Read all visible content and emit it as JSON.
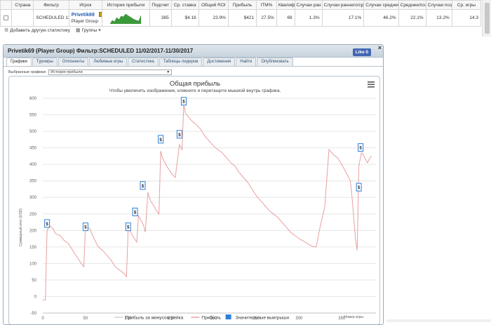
{
  "table": {
    "headers": [
      "",
      "Страна",
      "Фильтр",
      "Игрок",
      "История прибыли",
      "Подсчет",
      "Ср. ставка",
      "Общий ROI",
      "Прибыль",
      "ITM%",
      "Квалиф",
      "Случаи ран",
      "Случаи раннего/сре",
      "Случаи среднего",
      "Среднее/позд",
      "Случаи поздн",
      "Ср. игры"
    ],
    "row": {
      "filter": "SCHEDULED 11/02/2017-11/30/2017",
      "player_name": "Privetik69",
      "player_group": "Player Group",
      "count": "385",
      "avg_stake": "$4.16",
      "roi": "23.9%",
      "profit": "$421",
      "itm": "27.5%",
      "qualif": "69",
      "early": "1.3%",
      "early_mid": "17.1%",
      "mid": "46.2%",
      "mid_late": "22.1%",
      "late": "13.2%",
      "avg_games": "14.3"
    },
    "sparkline": [
      0,
      5,
      3,
      9,
      6,
      11,
      10,
      14,
      12,
      10,
      8,
      6,
      5,
      4,
      12
    ]
  },
  "toolbar": {
    "add_stat": "Добавить другую статистику",
    "groups": "Группы"
  },
  "dialog": {
    "title": "Privetik69 (Player Group) Фильтр:SCHEDULED 11/02/2017-11/30/2017",
    "like_label": "Like 0",
    "close": "×",
    "tabs": [
      "Графики",
      "Турниры",
      "Оппоненты",
      "Любимые игры",
      "Статистика",
      "Таблицы лидеров",
      "Достижения",
      "Найти",
      "Опубликовать"
    ],
    "active_tab": 0,
    "selected_label": "Выбранные графики:",
    "selected_value": "История прибыли"
  },
  "chart_data": {
    "type": "line",
    "title": "Общая прибыль",
    "subtitle": "Чтобы увеличить изображение, кликните и перетащите мышкой внутрь графика.",
    "ylabel": "Суммарный итог (USD)",
    "xlabel": "Номер игры",
    "xlim": [
      0,
      390
    ],
    "ylim": [
      -50,
      600
    ],
    "x_ticks": [
      0,
      50,
      100,
      150,
      200,
      250,
      300,
      350
    ],
    "y_ticks": [
      -50,
      0,
      50,
      100,
      150,
      200,
      250,
      300,
      350,
      400,
      450,
      500,
      550,
      600
    ],
    "grid": true,
    "series": [
      {
        "name": "Прибыль",
        "color": "#e8a0a0",
        "x": [
          0,
          3,
          5,
          8,
          12,
          15,
          20,
          25,
          30,
          35,
          40,
          45,
          48,
          50,
          55,
          60,
          65,
          70,
          75,
          80,
          85,
          90,
          95,
          98,
          100,
          103,
          106,
          110,
          112,
          115,
          118,
          120,
          123,
          126,
          130,
          133,
          136,
          138,
          140,
          145,
          150,
          155,
          160,
          163,
          165,
          167,
          170,
          175,
          180,
          185,
          190,
          195,
          200,
          205,
          210,
          215,
          220,
          225,
          230,
          235,
          240,
          245,
          250,
          255,
          260,
          265,
          270,
          275,
          280,
          285,
          290,
          295,
          300,
          305,
          310,
          315,
          320,
          325,
          330,
          335,
          340,
          345,
          350,
          355,
          360,
          362,
          364,
          366,
          368,
          370,
          373,
          375,
          378,
          380,
          383,
          385
        ],
        "y": [
          -10,
          -10,
          200,
          215,
          205,
          190,
          185,
          170,
          160,
          140,
          120,
          100,
          90,
          215,
          205,
          175,
          150,
          140,
          125,
          110,
          90,
          80,
          70,
          60,
          210,
          195,
          180,
          165,
          245,
          230,
          215,
          195,
          315,
          290,
          275,
          260,
          250,
          440,
          420,
          395,
          375,
          360,
          460,
          445,
          580,
          555,
          545,
          530,
          520,
          505,
          485,
          470,
          455,
          445,
          435,
          420,
          405,
          395,
          375,
          360,
          345,
          325,
          305,
          290,
          275,
          260,
          250,
          240,
          225,
          210,
          195,
          185,
          175,
          168,
          160,
          152,
          150,
          215,
          270,
          445,
          430,
          420,
          400,
          375,
          350,
          300,
          240,
          175,
          140,
          395,
          435,
          430,
          415,
          405,
          420,
          425
        ]
      },
      {
        "name": "Прибыль за минусом рейка",
        "color": "#cfcfcf",
        "x": [],
        "y": []
      }
    ],
    "markers": [
      {
        "label": "$",
        "x": 5,
        "y": 220
      },
      {
        "label": "$",
        "x": 50,
        "y": 210
      },
      {
        "label": "$",
        "x": 100,
        "y": 210
      },
      {
        "label": "$",
        "x": 108,
        "y": 255
      },
      {
        "label": "$",
        "x": 117,
        "y": 335
      },
      {
        "label": "$",
        "x": 138,
        "y": 475
      },
      {
        "label": "$",
        "x": 160,
        "y": 490
      },
      {
        "label": "$",
        "x": 165,
        "y": 590
      },
      {
        "label": "$",
        "x": 370,
        "y": 330
      },
      {
        "label": "$",
        "x": 372,
        "y": 450
      }
    ],
    "legend": [
      {
        "label": "Прибыль за минусом рейка",
        "color": "#cfcfcf",
        "kind": "line"
      },
      {
        "label": "Прибыль",
        "color": "#e8a0a0",
        "kind": "line"
      },
      {
        "label": "Значительные выигрыши",
        "color": "#2f7ed8",
        "kind": "box"
      }
    ]
  }
}
